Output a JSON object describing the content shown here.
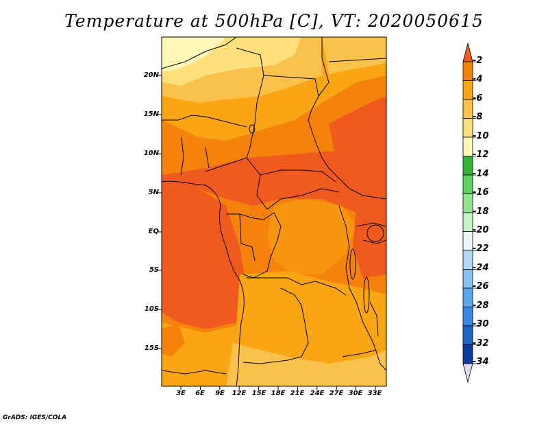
{
  "title": "Temperature at 500hPa [C], VT: 2020050615",
  "credit": "GrADS: IGES/COLA",
  "lat_labels": [
    "20N",
    "15N",
    "10N",
    "5N",
    "EQ",
    "5S",
    "10S",
    "15S"
  ],
  "lon_labels": [
    "3E",
    "6E",
    "9E",
    "12E",
    "15E",
    "18E",
    "21E",
    "24E",
    "27E",
    "30E",
    "33E"
  ],
  "colorbar": {
    "labels": [
      "-2",
      "-4",
      "-6",
      "-8",
      "-10",
      "-12",
      "-14",
      "-16",
      "-18",
      "-20",
      "-22",
      "-24",
      "-26",
      "-28",
      "-30",
      "-32",
      "-34"
    ],
    "colors": [
      "#f05a1e",
      "#f5820a",
      "#f9a514",
      "#fbc24b",
      "#fddf7c",
      "#fff6b8",
      "#34b434",
      "#5fd35f",
      "#90e690",
      "#c4f5c4",
      "#eaf8fc",
      "#b2daf7",
      "#86c3f2",
      "#5ca6ee",
      "#3a86e4",
      "#1f63c8",
      "#0b3aa0",
      "#0a1a6e",
      "#dcdcf0"
    ],
    "top_arrow_color": "#f05a1e",
    "bottom_arrow_color": "#dcdcf0"
  },
  "map": {
    "region": "Central Africa",
    "lon_range": [
      0,
      34.5
    ],
    "lat_range": [
      -19.5,
      24.5
    ],
    "base_color": "#f5820a",
    "field_colors": {
      "warmest": "#f05a1e",
      "warm": "#f5820a",
      "mid": "#f9a514",
      "cool": "#fbc24b",
      "coolest": "#fddf7c",
      "pale": "#fff6b8"
    }
  }
}
